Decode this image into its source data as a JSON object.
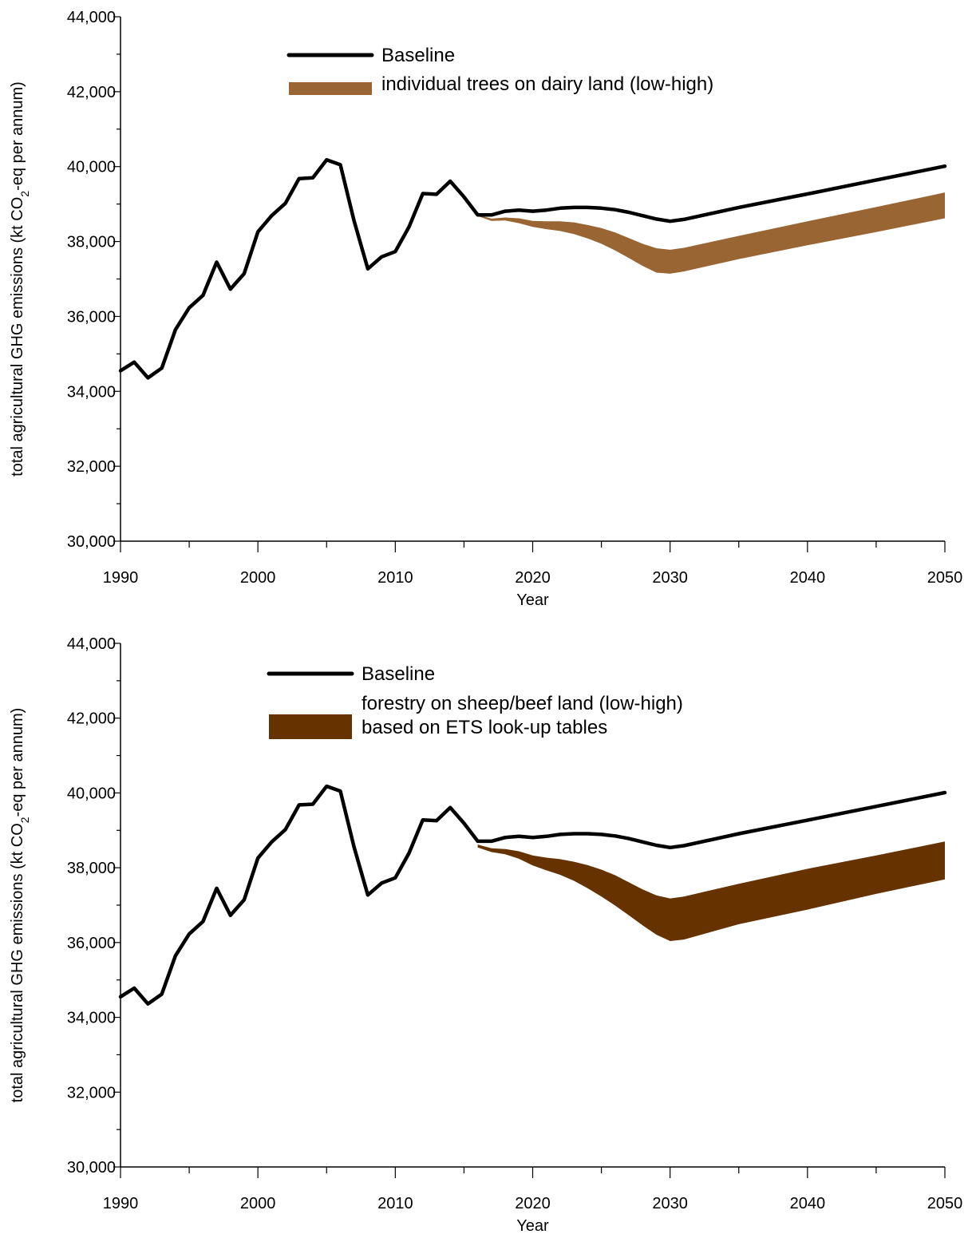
{
  "chart_data": [
    {
      "type": "line",
      "xlabel": "Year",
      "ylabel": "total agricultural GHG emissions (kt CO2-eq per annum)",
      "ylabel_parts": {
        "before": "total agricultural GHG emissions (kt CO",
        "sub": "2",
        "after": "-eq per annum)"
      },
      "xlim": [
        1990,
        2050
      ],
      "ylim": [
        30000,
        44000
      ],
      "xticks": [
        1990,
        2000,
        2010,
        2020,
        2030,
        2040,
        2050
      ],
      "xtick_labels": [
        "1990",
        "2000",
        "2010",
        "2020",
        "2030",
        "2040",
        "2050"
      ],
      "yticks": [
        30000,
        32000,
        34000,
        36000,
        38000,
        40000,
        42000,
        44000
      ],
      "ytick_labels": [
        "30,000",
        "32,000",
        "34,000",
        "36,000",
        "38,000",
        "40,000",
        "42,000",
        "44,000"
      ],
      "legend_position": "top-center",
      "legend": [
        {
          "lines": [
            "Baseline"
          ]
        },
        {
          "lines": [
            "individual trees on dairy land (low-high)"
          ]
        }
      ],
      "series": [
        {
          "name": "Baseline",
          "kind": "line",
          "color": "#000000",
          "x": [
            1990,
            1991,
            1992,
            1993,
            1994,
            1995,
            1996,
            1997,
            1998,
            1999,
            2000,
            2001,
            2002,
            2003,
            2004,
            2005,
            2006,
            2007,
            2008,
            2009,
            2010,
            2011,
            2012,
            2013,
            2014,
            2015,
            2016,
            2017,
            2018,
            2019,
            2020,
            2021,
            2022,
            2023,
            2024,
            2025,
            2026,
            2027,
            2028,
            2029,
            2030,
            2031,
            2035,
            2040,
            2045,
            2050
          ],
          "y": [
            34550,
            34780,
            34360,
            34620,
            35650,
            36230,
            36560,
            37450,
            36730,
            37140,
            38260,
            38690,
            39020,
            39680,
            39700,
            40180,
            40050,
            38550,
            37270,
            37590,
            37730,
            38390,
            39280,
            39260,
            39610,
            39190,
            38710,
            38710,
            38810,
            38840,
            38810,
            38840,
            38890,
            38910,
            38910,
            38890,
            38850,
            38780,
            38690,
            38600,
            38540,
            38590,
            38910,
            39270,
            39640,
            40010
          ]
        },
        {
          "name": "individual trees on dairy land (low-high)",
          "kind": "band",
          "color": "#996633",
          "x": [
            2016,
            2017,
            2018,
            2019,
            2020,
            2021,
            2022,
            2023,
            2024,
            2025,
            2026,
            2027,
            2028,
            2029,
            2030,
            2031,
            2035,
            2040,
            2045,
            2050
          ],
          "high": [
            38710,
            38610,
            38640,
            38620,
            38550,
            38540,
            38540,
            38510,
            38440,
            38360,
            38240,
            38090,
            37940,
            37820,
            37780,
            37830,
            38150,
            38540,
            38920,
            39310
          ],
          "low": [
            38680,
            38550,
            38560,
            38490,
            38390,
            38330,
            38280,
            38200,
            38080,
            37940,
            37760,
            37560,
            37350,
            37170,
            37140,
            37200,
            37530,
            37900,
            38250,
            38620
          ]
        }
      ]
    },
    {
      "type": "line",
      "xlabel": "Year",
      "ylabel": "total agricultural GHG emissions (kt CO2-eq per annum)",
      "ylabel_parts": {
        "before": "total agricultural GHG emissions (kt CO",
        "sub": "2",
        "after": "-eq per annum)"
      },
      "xlim": [
        1990,
        2050
      ],
      "ylim": [
        30000,
        44000
      ],
      "xticks": [
        1990,
        2000,
        2010,
        2020,
        2030,
        2040,
        2050
      ],
      "xtick_labels": [
        "1990",
        "2000",
        "2010",
        "2020",
        "2030",
        "2040",
        "2050"
      ],
      "yticks": [
        30000,
        32000,
        34000,
        36000,
        38000,
        40000,
        42000,
        44000
      ],
      "ytick_labels": [
        "30,000",
        "32,000",
        "34,000",
        "36,000",
        "38,000",
        "40,000",
        "42,000",
        "44,000"
      ],
      "legend_position": "top-center",
      "legend": [
        {
          "lines": [
            "Baseline"
          ]
        },
        {
          "lines": [
            "forestry on sheep/beef land (low-high)",
            "based on ETS look-up tables"
          ]
        }
      ],
      "series": [
        {
          "name": "Baseline",
          "kind": "line",
          "color": "#000000",
          "x": [
            1990,
            1991,
            1992,
            1993,
            1994,
            1995,
            1996,
            1997,
            1998,
            1999,
            2000,
            2001,
            2002,
            2003,
            2004,
            2005,
            2006,
            2007,
            2008,
            2009,
            2010,
            2011,
            2012,
            2013,
            2014,
            2015,
            2016,
            2017,
            2018,
            2019,
            2020,
            2021,
            2022,
            2023,
            2024,
            2025,
            2026,
            2027,
            2028,
            2029,
            2030,
            2031,
            2035,
            2040,
            2045,
            2050
          ],
          "y": [
            34550,
            34780,
            34360,
            34620,
            35650,
            36230,
            36560,
            37450,
            36730,
            37140,
            38260,
            38690,
            39020,
            39680,
            39700,
            40180,
            40050,
            38550,
            37270,
            37590,
            37730,
            38390,
            39280,
            39260,
            39610,
            39190,
            38710,
            38710,
            38810,
            38840,
            38810,
            38840,
            38890,
            38910,
            38910,
            38890,
            38850,
            38780,
            38690,
            38600,
            38540,
            38590,
            38910,
            39270,
            39640,
            40010
          ]
        },
        {
          "name": "forestry on sheep/beef land (low-high) based on ETS look-up tables",
          "kind": "band",
          "color": "#663300",
          "x": [
            2016,
            2017,
            2018,
            2019,
            2020,
            2021,
            2022,
            2023,
            2024,
            2025,
            2026,
            2027,
            2028,
            2029,
            2030,
            2031,
            2035,
            2040,
            2045,
            2050
          ],
          "high": [
            38620,
            38520,
            38500,
            38440,
            38330,
            38270,
            38230,
            38160,
            38070,
            37950,
            37800,
            37610,
            37420,
            37260,
            37180,
            37230,
            37570,
            37970,
            38330,
            38700
          ],
          "low": [
            38540,
            38420,
            38360,
            38240,
            38060,
            37930,
            37810,
            37650,
            37450,
            37230,
            36990,
            36730,
            36460,
            36210,
            36040,
            36080,
            36490,
            36880,
            37300,
            37690
          ]
        }
      ]
    }
  ]
}
